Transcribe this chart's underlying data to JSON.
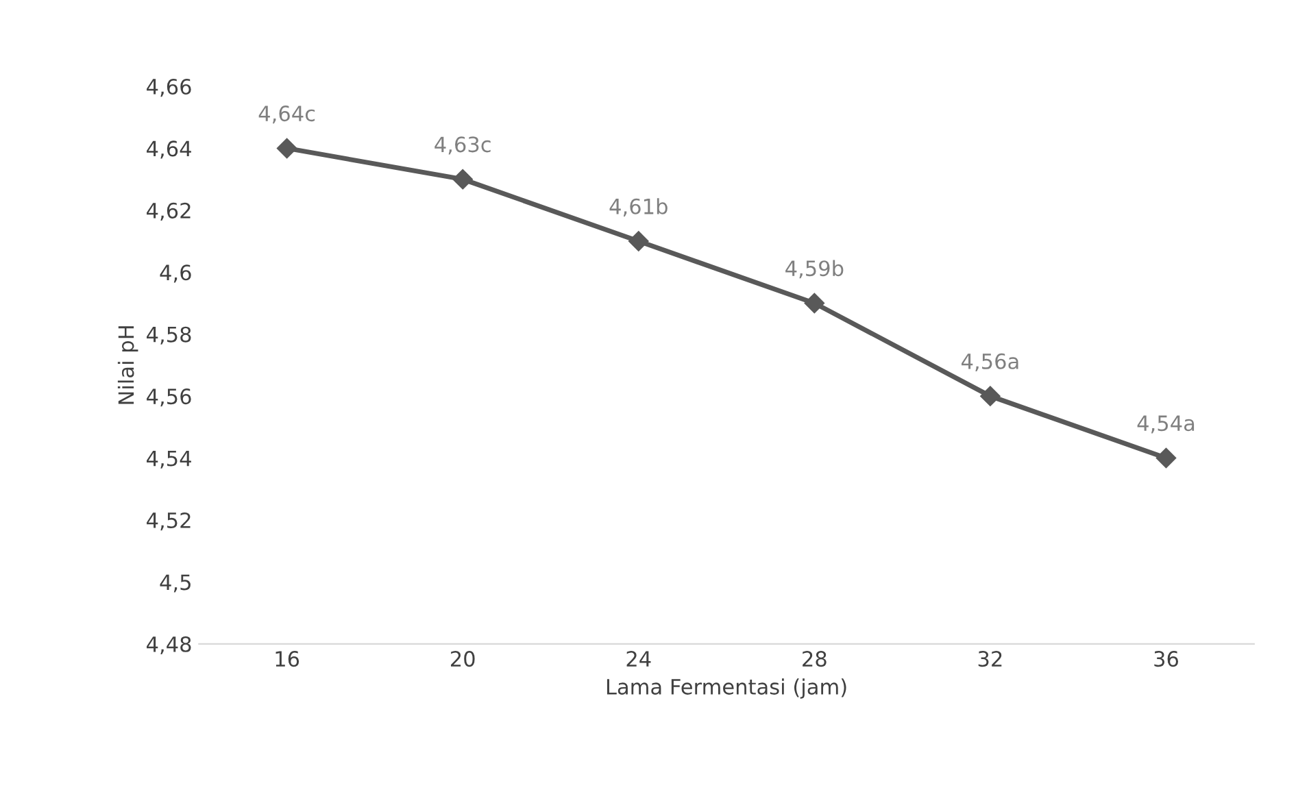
{
  "chart_data": {
    "type": "line",
    "xlabel": "Lama Fermentasi (jam)",
    "ylabel": "Nilai pH",
    "categories": [
      "16",
      "20",
      "24",
      "28",
      "32",
      "36"
    ],
    "series": [
      {
        "color": "#595959",
        "values": [
          4.64,
          4.63,
          4.61,
          4.59,
          4.56,
          4.54
        ],
        "value_labels": [
          "4,64c",
          "4,63c",
          "4,61b",
          "4,59b",
          "4,56a",
          "4,54a"
        ]
      }
    ],
    "ylim": [
      4.48,
      4.66
    ],
    "yticks": [
      {
        "value": 4.48,
        "label": "4,48"
      },
      {
        "value": 4.5,
        "label": "4,5"
      },
      {
        "value": 4.52,
        "label": "4,52"
      },
      {
        "value": 4.54,
        "label": "4,54"
      },
      {
        "value": 4.56,
        "label": "4,56"
      },
      {
        "value": 4.58,
        "label": "4,58"
      },
      {
        "value": 4.6,
        "label": "4,6"
      },
      {
        "value": 4.62,
        "label": "4,62"
      },
      {
        "value": 4.64,
        "label": "4,64"
      },
      {
        "value": 4.66,
        "label": "4,66"
      }
    ],
    "marker": "diamond",
    "line_style": "solid",
    "grid": false,
    "legend": false
  }
}
